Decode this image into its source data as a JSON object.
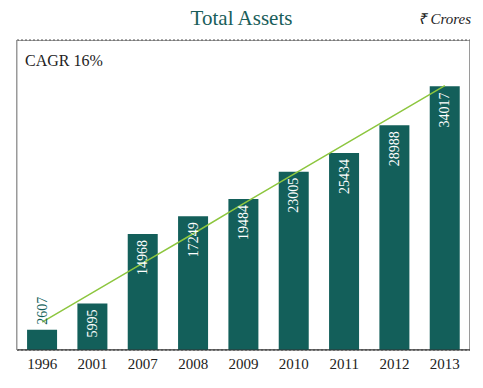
{
  "chart_data": {
    "type": "bar",
    "title": "Total Assets",
    "subtitle": "₹ Crores",
    "annotations": [
      "CAGR 16%"
    ],
    "categories": [
      "1996",
      "2001",
      "2007",
      "2008",
      "2009",
      "2010",
      "2011",
      "2012",
      "2013"
    ],
    "series": [
      {
        "type": "bar",
        "color": "#135f5a",
        "data_labels": true,
        "values": [
          2607,
          5995,
          14968,
          17249,
          19484,
          23005,
          25434,
          28988,
          34017
        ]
      },
      {
        "type": "line",
        "color": "#8dc63f",
        "values": [
          3600,
          7400,
          11200,
          15000,
          18900,
          22700,
          26500,
          30300,
          34100
        ]
      }
    ],
    "ylim": [
      0,
      40000
    ],
    "yticks": [
      0,
      4000,
      8000,
      12000,
      16000,
      20000,
      24000,
      28000,
      32000,
      36000,
      40000
    ],
    "grid": true,
    "tick_labels": "x"
  }
}
